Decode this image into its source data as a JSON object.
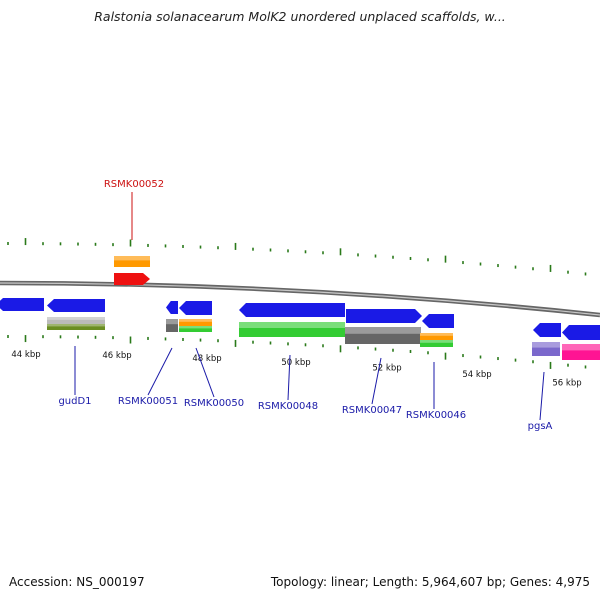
{
  "title": "Ralstonia solanacearum MolK2 unordered unplaced scaffolds, w...",
  "footer": {
    "accession": "Accession: NS_000197",
    "stats": "Topology: linear; Length: 5,964,607 bp; Genes: 4,975"
  },
  "colors": {
    "backbone": "#808080",
    "tick": "#2a7a1a",
    "forward_gene": "#1a1ae6",
    "label_blue": "#1a1aa8",
    "label_red": "#cc1111",
    "orange": "#ff9900",
    "red": "#ee1111",
    "green": "#33cc33",
    "gray": "#666666",
    "light_gray": "#bbbbbb",
    "olive": "#6b8e23",
    "purple": "#7b68cc",
    "pink": "#ff1493"
  },
  "scale_labels": [
    "44 kbp",
    "46 kbp",
    "48 kbp",
    "50 kbp",
    "52 kbp",
    "54 kbp",
    "56 kbp"
  ],
  "gene_labels": [
    {
      "text": "RSMK00052",
      "color": "red"
    },
    {
      "text": "gudD1",
      "color": "blue"
    },
    {
      "text": "RSMK00051",
      "color": "blue"
    },
    {
      "text": "RSMK00050",
      "color": "blue"
    },
    {
      "text": "RSMK00048",
      "color": "blue"
    },
    {
      "text": "RSMK00047",
      "color": "blue"
    },
    {
      "text": "RSMK00046",
      "color": "blue"
    },
    {
      "text": "pgsA",
      "color": "blue"
    }
  ]
}
